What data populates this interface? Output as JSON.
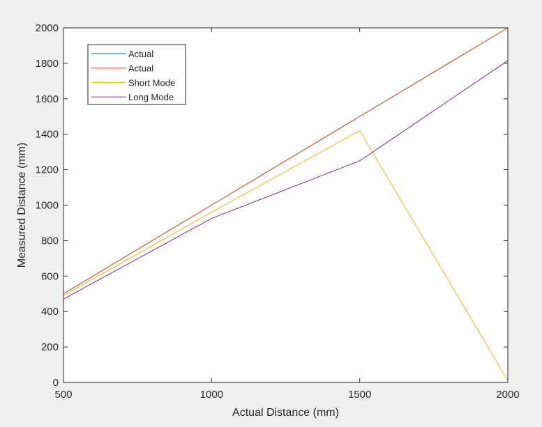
{
  "chart_data": {
    "type": "line",
    "title": "",
    "xlabel": "Actual Distance (mm)",
    "ylabel": "Measured Distance (mm)",
    "xlim": [
      500,
      2000
    ],
    "ylim": [
      0,
      2000
    ],
    "x_ticks": [
      500,
      1000,
      1500,
      2000
    ],
    "y_ticks": [
      0,
      200,
      400,
      600,
      800,
      1000,
      1200,
      1400,
      1600,
      1800,
      2000
    ],
    "grid": false,
    "legend_position": "top-left",
    "x": [
      500,
      1000,
      1500,
      2000
    ],
    "series": [
      {
        "name": "Actual",
        "color": "#0072BD",
        "values": [
          500,
          1000,
          1500,
          2000
        ]
      },
      {
        "name": "Actual",
        "color": "#D95319",
        "values": [
          500,
          1000,
          1500,
          2000
        ]
      },
      {
        "name": "Short Mode",
        "color": "#EDB120",
        "values": [
          490,
          960,
          1420,
          10
        ]
      },
      {
        "name": "Long Mode",
        "color": "#7E2F8E",
        "values": [
          470,
          925,
          1250,
          1815
        ]
      }
    ]
  }
}
